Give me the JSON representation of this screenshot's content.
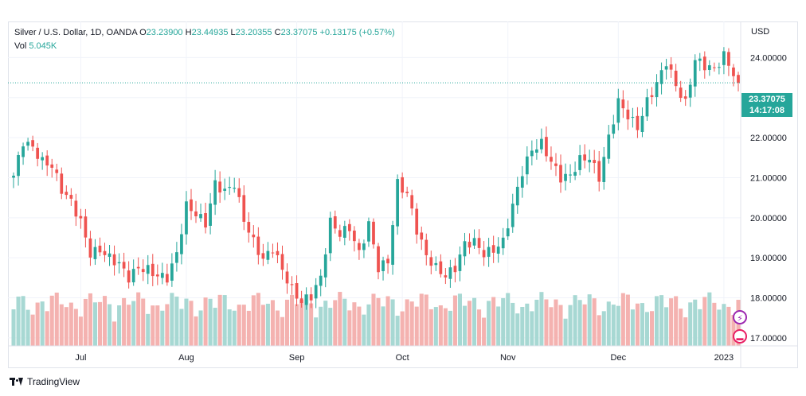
{
  "legend": {
    "symbol": "Silver / U.S. Dollar, 1D, OANDA",
    "o_label": "O",
    "o_value": "23.23900",
    "h_label": "H",
    "h_value": "23.44935",
    "l_label": "L",
    "l_value": "23.20355",
    "c_label": "C",
    "c_value": "23.37075",
    "change": "+0.13175 (+0.57%)",
    "vol_label": "Vol",
    "vol_value": "5.045K"
  },
  "axis": {
    "currency": "USD"
  },
  "last_price": {
    "price": "23.37075",
    "countdown": "14:17:08"
  },
  "watermark": {
    "text": "TradingView"
  },
  "icons": {
    "logo": "tradingview-logo-icon",
    "alert": "alert-clock-icon",
    "event": "economic-event-icon"
  },
  "colors": {
    "up": "#26a69a",
    "down": "#ef5350",
    "up_vol": "#a7d8d3",
    "down_vol": "#f4b2b0",
    "grid": "#f0f3fa"
  },
  "chart_data": {
    "type": "candlestick",
    "title": "Silver / U.S. Dollar, 1D, OANDA",
    "y_ticks": [
      "24.00000",
      "23.00000",
      "22.00000",
      "21.00000",
      "20.00000",
      "19.00000",
      "18.00000",
      "17.00000"
    ],
    "y_tick_values": [
      24,
      23,
      22,
      21,
      20,
      19,
      18,
      17
    ],
    "ylim": [
      16.8,
      24.9
    ],
    "x_labels": [
      {
        "label": "Jul",
        "index": 14
      },
      {
        "label": "Aug",
        "index": 36
      },
      {
        "label": "Sep",
        "index": 59
      },
      {
        "label": "Oct",
        "index": 81
      },
      {
        "label": "Nov",
        "index": 103
      },
      {
        "label": "Dec",
        "index": 126
      },
      {
        "label": "2023",
        "index": 148
      }
    ],
    "close_anchors": [
      [
        0,
        21.05
      ],
      [
        2,
        21.9
      ],
      [
        4,
        21.75
      ],
      [
        6,
        21.4
      ],
      [
        8,
        21.3
      ],
      [
        10,
        20.7
      ],
      [
        12,
        20.4
      ],
      [
        14,
        19.9
      ],
      [
        16,
        19.1
      ],
      [
        18,
        19.2
      ],
      [
        20,
        19.0
      ],
      [
        22,
        18.85
      ],
      [
        24,
        18.5
      ],
      [
        26,
        18.75
      ],
      [
        28,
        18.7
      ],
      [
        30,
        18.55
      ],
      [
        32,
        18.5
      ],
      [
        34,
        19.1
      ],
      [
        36,
        20.3
      ],
      [
        38,
        20.1
      ],
      [
        40,
        19.85
      ],
      [
        42,
        20.85
      ],
      [
        44,
        20.65
      ],
      [
        46,
        20.85
      ],
      [
        48,
        19.95
      ],
      [
        50,
        19.4
      ],
      [
        52,
        18.95
      ],
      [
        54,
        19.25
      ],
      [
        56,
        18.7
      ],
      [
        58,
        18.2
      ],
      [
        60,
        17.9
      ],
      [
        62,
        18.05
      ],
      [
        64,
        18.5
      ],
      [
        66,
        19.9
      ],
      [
        68,
        19.6
      ],
      [
        70,
        19.75
      ],
      [
        72,
        19.1
      ],
      [
        74,
        19.85
      ],
      [
        76,
        18.75
      ],
      [
        78,
        18.9
      ],
      [
        80,
        20.85
      ],
      [
        82,
        20.6
      ],
      [
        84,
        19.7
      ],
      [
        86,
        19.05
      ],
      [
        88,
        18.75
      ],
      [
        90,
        18.55
      ],
      [
        92,
        18.75
      ],
      [
        94,
        19.35
      ],
      [
        96,
        19.4
      ],
      [
        98,
        19.1
      ],
      [
        100,
        19.2
      ],
      [
        102,
        19.4
      ],
      [
        104,
        20.3
      ],
      [
        106,
        21.15
      ],
      [
        108,
        21.7
      ],
      [
        110,
        21.85
      ],
      [
        112,
        21.4
      ],
      [
        114,
        21.0
      ],
      [
        116,
        21.05
      ],
      [
        118,
        21.45
      ],
      [
        120,
        21.5
      ],
      [
        122,
        21.0
      ],
      [
        124,
        22.0
      ],
      [
        126,
        22.9
      ],
      [
        128,
        22.55
      ],
      [
        130,
        22.25
      ],
      [
        132,
        22.9
      ],
      [
        134,
        23.35
      ],
      [
        136,
        23.9
      ],
      [
        138,
        23.3
      ],
      [
        140,
        22.85
      ],
      [
        142,
        23.95
      ],
      [
        144,
        23.8
      ],
      [
        146,
        23.7
      ],
      [
        148,
        24.05
      ],
      [
        150,
        23.6
      ],
      [
        151,
        23.37
      ]
    ]
  }
}
